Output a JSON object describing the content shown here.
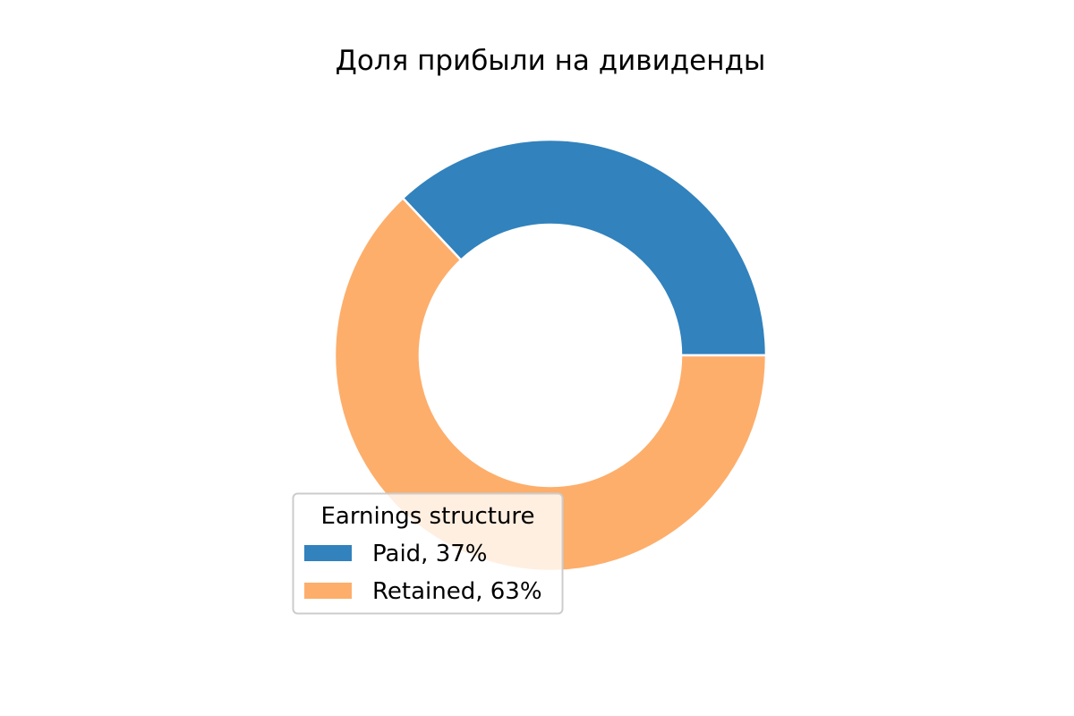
{
  "chart_data": {
    "type": "pie",
    "title": "Доля прибыли на дивиденды",
    "labels": [
      "Paid, 37%",
      "Retained, 63%"
    ],
    "values": [
      37,
      63
    ],
    "colors": [
      "#3182bd",
      "#fdae6b"
    ],
    "donut": true,
    "legend": {
      "title": "Earnings structure",
      "placement": "lower-left"
    }
  }
}
